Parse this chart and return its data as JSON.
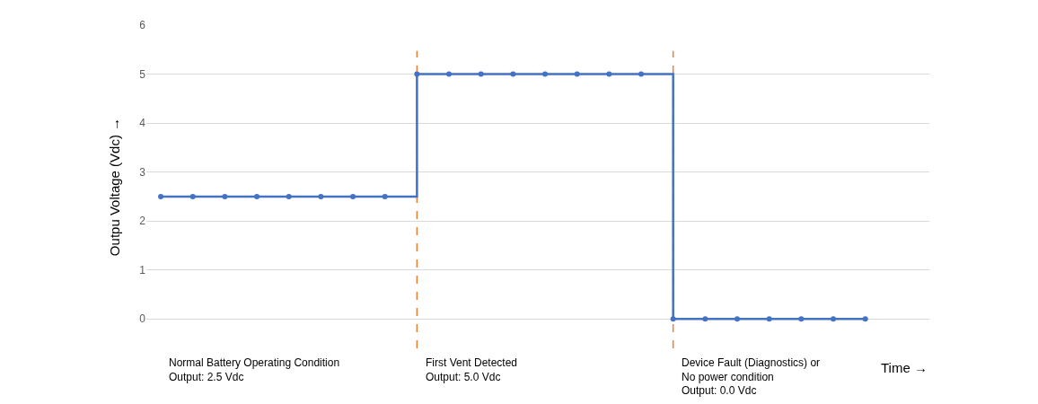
{
  "chart_data": {
    "type": "step",
    "xlabel": "Time →",
    "ylabel": "Outpu Voltage (Vdc) →",
    "categories": [
      null,
      null,
      null,
      null,
      null,
      null,
      null,
      null,
      null,
      null,
      null,
      null,
      null,
      null,
      null,
      null,
      null,
      null,
      null,
      null,
      null,
      null,
      null
    ],
    "series": [
      {
        "color": "#4472c4",
        "values": [
          2.5,
          2.5,
          2.5,
          2.5,
          2.5,
          2.5,
          2.5,
          2.5,
          5,
          5,
          5,
          5,
          5,
          5,
          5,
          5,
          0,
          0,
          0,
          0,
          0,
          0,
          0
        ]
      }
    ],
    "marker": "circle",
    "line_style": "solid",
    "ylim": [
      -0.6,
      6
    ],
    "yticks": [
      0,
      1,
      2,
      3,
      4,
      5,
      6
    ],
    "tick_labels": "y",
    "grid": "y",
    "annotations": [
      "Normal Battery Operating Condition\nOutput: 2.5 Vdc",
      "First Vent Detected\nOutput: 5.0 Vdc",
      "Device Fault (Diagnostics) or\nNo power condition\nOutput: 0.0 Vdc"
    ]
  }
}
